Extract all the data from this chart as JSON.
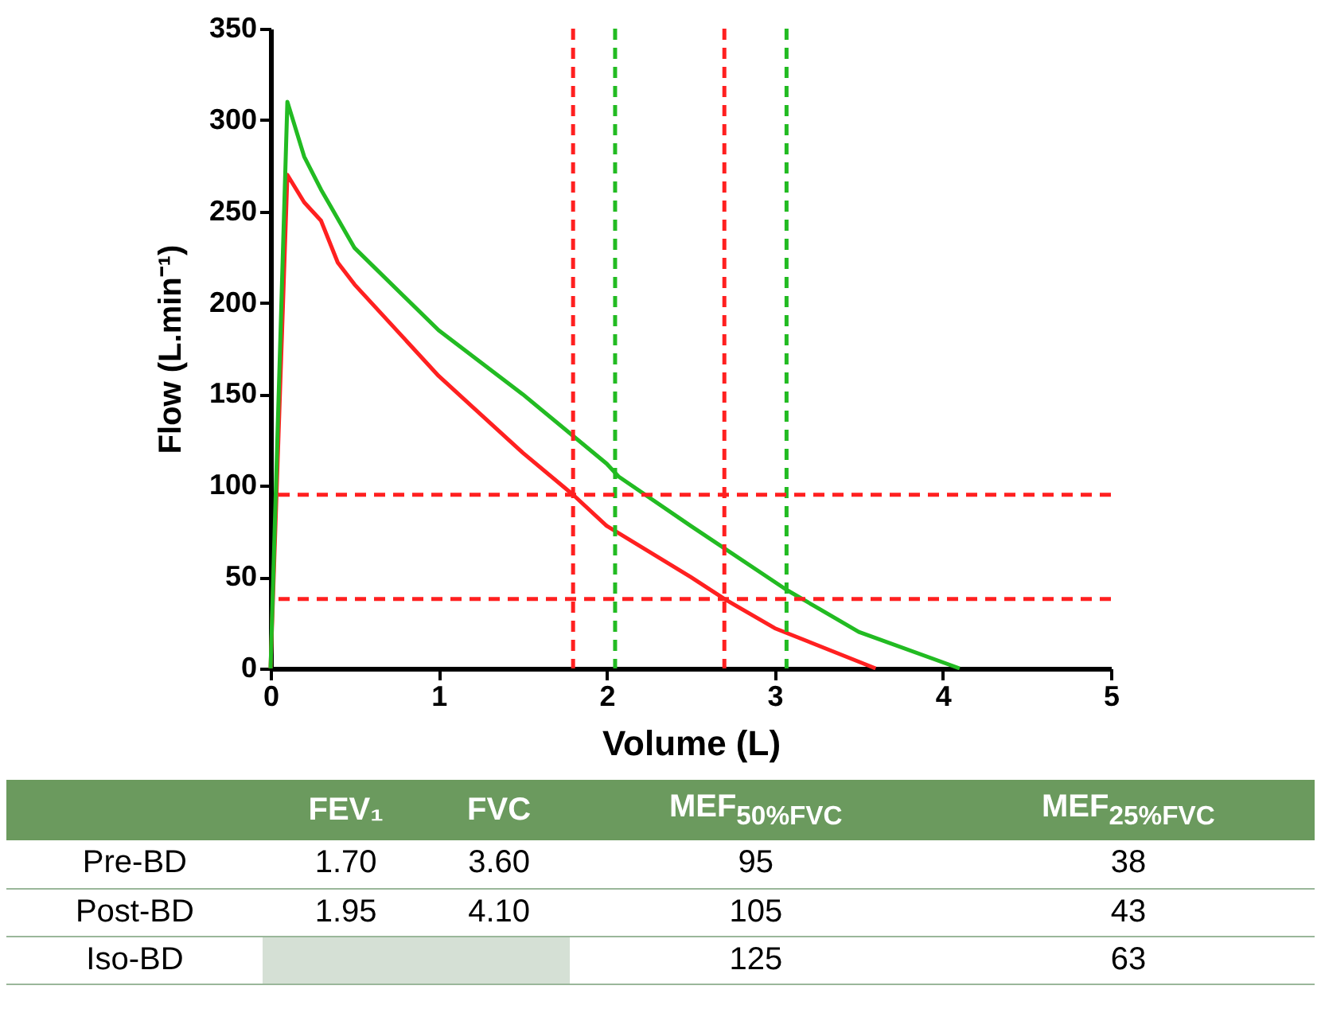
{
  "chart_data": [
    {
      "type": "line",
      "xlabel": "Volume (L)",
      "ylabel": "Flow (L.min⁻¹)",
      "xlim": [
        0,
        5
      ],
      "xticks": [
        0,
        1,
        2,
        3,
        4,
        5
      ],
      "ylim": [
        0,
        350
      ],
      "yticks": [
        0,
        50,
        100,
        150,
        200,
        250,
        300,
        350
      ],
      "grid": false,
      "marker": "none",
      "line_style": "solid",
      "series": [
        {
          "color": "#ff2020",
          "x": [
            0,
            0.1,
            0.2,
            0.3,
            0.4,
            0.5,
            1,
            1.5,
            1.8,
            2,
            2.5,
            2.7,
            3,
            3.6
          ],
          "values": [
            0,
            270,
            255,
            245,
            222,
            210,
            160,
            118,
            95,
            78,
            50,
            38,
            22,
            0
          ]
        },
        {
          "color": "#22bb22",
          "x": [
            0,
            0.1,
            0.2,
            0.3,
            0.5,
            1,
            1.5,
            2,
            2.07,
            2.5,
            3.07,
            3.5,
            4.1
          ],
          "values": [
            0,
            310,
            280,
            262,
            230,
            185,
            150,
            112,
            105,
            78,
            43,
            20,
            0
          ]
        }
      ],
      "ref_lines": [
        {
          "axis": "x",
          "value": 1.8,
          "color": "#ff2020",
          "line_style": "dashed"
        },
        {
          "axis": "x",
          "value": 2.05,
          "color": "#22bb22",
          "line_style": "dashed"
        },
        {
          "axis": "x",
          "value": 2.7,
          "color": "#ff2020",
          "line_style": "dashed"
        },
        {
          "axis": "x",
          "value": 3.07,
          "color": "#22bb22",
          "line_style": "dashed"
        },
        {
          "axis": "y",
          "value": 95,
          "color": "#ff2020",
          "line_style": "dashed"
        },
        {
          "axis": "y",
          "value": 38,
          "color": "#ff2020",
          "line_style": "dashed"
        }
      ]
    },
    {
      "type": "other",
      "categories": [
        null,
        "FEV₁",
        "FVC",
        "MEF$_{50%FVC}$",
        "MEF$_{25%FVC}$"
      ],
      "y_categories": [
        "Pre-BD",
        "Post-BD",
        "Iso-BD"
      ],
      "cell_labels": [
        [
          "1.70",
          "3.60",
          "95",
          "38"
        ],
        [
          "1.95",
          "4.10",
          "105",
          "43"
        ],
        [
          null,
          null,
          "125",
          "63"
        ]
      ]
    }
  ]
}
